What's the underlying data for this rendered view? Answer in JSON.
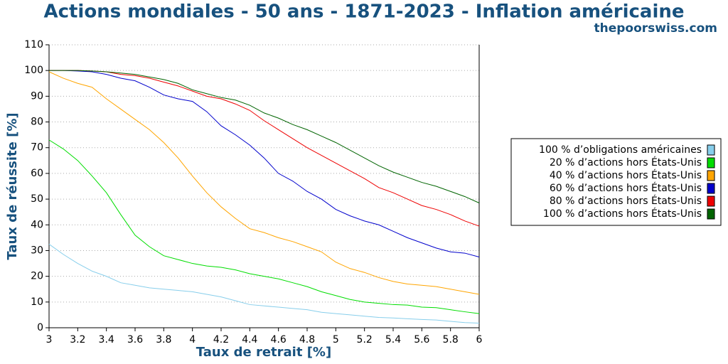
{
  "chart_data": {
    "type": "line",
    "title": "Actions mondiales - 50 ans - 1871-2023 - Inflation américaine",
    "subtitle": "thepoorswiss.com",
    "x_label": "Taux de retrait [%]",
    "y_label": "Taux de réussite [%]",
    "x": [
      3,
      3.1,
      3.2,
      3.3,
      3.4,
      3.5,
      3.6,
      3.7,
      3.8,
      3.9,
      4,
      4.1,
      4.2,
      4.3,
      4.4,
      4.5,
      4.6,
      4.7,
      4.8,
      4.9,
      5,
      5.1,
      5.2,
      5.3,
      5.4,
      5.5,
      5.6,
      5.7,
      5.8,
      5.9,
      6
    ],
    "series": [
      {
        "name": "100 % d’obligations américaines",
        "color": "#87ceeb",
        "values": [
          32.5,
          28.5,
          25,
          22,
          20,
          17.5,
          16.5,
          15.5,
          15,
          14.5,
          14,
          13,
          12,
          10.5,
          9,
          8.5,
          8,
          7.5,
          7,
          6,
          5.5,
          5,
          4.5,
          4,
          3.8,
          3.5,
          3.2,
          3,
          2.5,
          2,
          1.8
        ]
      },
      {
        "name": "20 % d’actions hors États-Unis",
        "color": "#00dd00",
        "values": [
          73,
          69.5,
          65,
          59,
          52.5,
          44,
          36,
          31.5,
          28,
          26.5,
          25,
          24,
          23.5,
          22.5,
          21,
          20,
          19,
          17.5,
          16,
          14,
          12.5,
          11,
          10,
          9.5,
          9,
          8.8,
          8,
          7.8,
          7,
          6.2,
          5.5
        ]
      },
      {
        "name": "40 % d’actions hors États-Unis",
        "color": "#ffa500",
        "values": [
          99.5,
          97,
          95,
          93.5,
          89,
          85,
          81,
          77,
          72,
          66,
          59,
          52.5,
          47,
          42.5,
          38.5,
          37,
          35,
          33.5,
          31.5,
          29.5,
          25.5,
          23,
          21.5,
          19.5,
          18,
          17,
          16.5,
          16,
          15,
          14,
          13
        ]
      },
      {
        "name": "60 % d’actions hors États-Unis",
        "color": "#0000cc",
        "values": [
          100,
          100,
          99.8,
          99.5,
          98.5,
          97,
          96,
          93.5,
          90.5,
          89,
          88,
          84,
          78.5,
          75,
          71,
          66,
          60,
          57,
          53,
          50,
          46,
          43.5,
          41.5,
          40,
          37.5,
          35,
          33,
          31,
          29.5,
          29,
          27.5
        ]
      },
      {
        "name": "80 % d’actions hors États-Unis",
        "color": "#ee0000",
        "values": [
          100,
          100,
          100,
          99.8,
          99.5,
          98.5,
          98,
          97,
          95.5,
          94,
          92,
          90,
          89,
          87,
          84.5,
          80.5,
          77,
          73.5,
          70,
          67,
          64,
          61,
          58,
          54.5,
          52.5,
          50,
          47.5,
          46,
          44,
          41.5,
          39.5
        ]
      },
      {
        "name": "100 % d’actions hors États-Unis",
        "color": "#006400",
        "values": [
          100,
          100,
          100,
          99.8,
          99.5,
          99,
          98.5,
          97.5,
          96.5,
          95,
          92.5,
          91,
          89.5,
          88.5,
          86.5,
          83.5,
          81.5,
          79,
          77,
          74.5,
          72,
          69,
          66,
          63,
          60.5,
          58.5,
          56.5,
          55,
          53,
          51,
          48.5
        ]
      }
    ],
    "xlim": [
      3,
      6
    ],
    "ylim": [
      0,
      110
    ],
    "xticks": [
      3,
      3.2,
      3.4,
      3.6,
      3.8,
      4,
      4.2,
      4.4,
      4.6,
      4.8,
      5,
      5.2,
      5.4,
      5.6,
      5.8,
      6
    ],
    "yticks": [
      0,
      10,
      20,
      30,
      40,
      50,
      60,
      70,
      80,
      90,
      100,
      110
    ],
    "grid": true,
    "legend": "right"
  }
}
